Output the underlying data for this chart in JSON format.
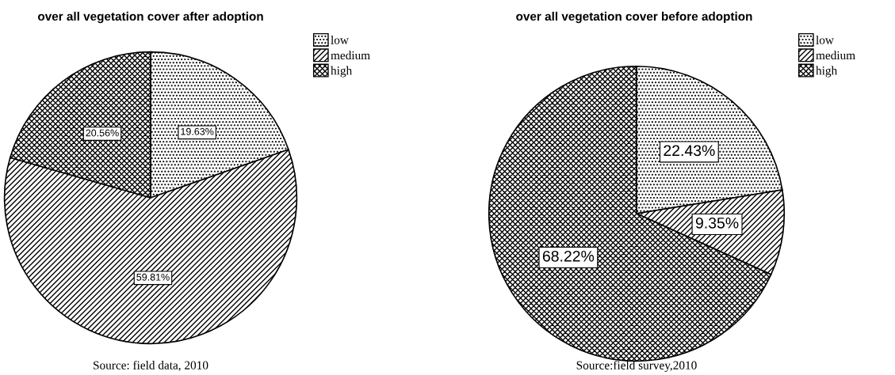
{
  "chart_data": [
    {
      "type": "pie",
      "title": "over all vegetation cover after adoption",
      "categories": [
        "low",
        "medium",
        "high"
      ],
      "values": [
        19.63,
        59.81,
        20.56
      ],
      "colors": [
        "#000000",
        "#000000",
        "#000000"
      ],
      "value_labels": [
        "19.63%",
        "59.81%",
        "20.56%"
      ],
      "legend": "top right",
      "annotations": [
        "Source: field data, 2010"
      ]
    },
    {
      "type": "pie",
      "title": "over all vegetation cover before adoption",
      "categories": [
        "low",
        "medium",
        "high"
      ],
      "values": [
        22.43,
        9.35,
        68.22
      ],
      "colors": [
        "#000000",
        "#000000",
        "#000000"
      ],
      "value_labels": [
        "22.43%",
        "9.35%",
        "68.22%"
      ],
      "legend": "top right",
      "annotations": [
        "Source:field survey,2010"
      ]
    }
  ]
}
